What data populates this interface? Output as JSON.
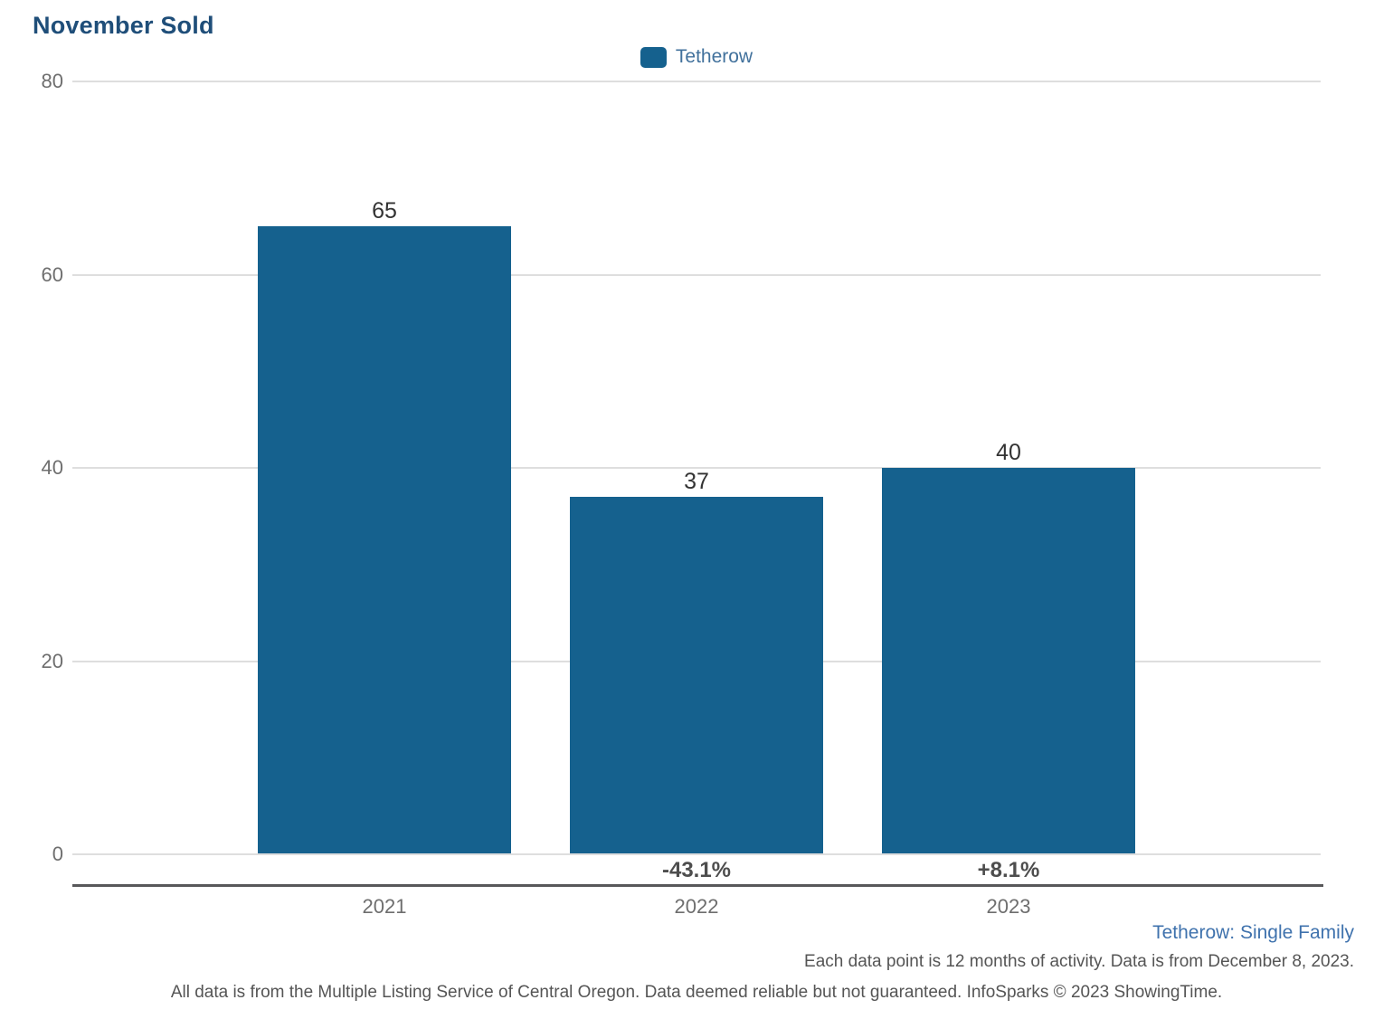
{
  "title": "November Sold",
  "legend": {
    "label": "Tetherow",
    "swatch_color": "#15618E"
  },
  "chart_data": {
    "type": "bar",
    "title": "November Sold",
    "series_name": "Tetherow",
    "categories": [
      "2021",
      "2022",
      "2023"
    ],
    "values": [
      65,
      37,
      40
    ],
    "value_labels": [
      "65",
      "37",
      "40"
    ],
    "pct_change_labels": [
      "",
      "-43.1%",
      "+8.1%"
    ],
    "xlabel": "",
    "ylabel": "",
    "ylim": [
      0,
      80
    ],
    "yticks": [
      0,
      20,
      40,
      60,
      80
    ],
    "grid": true,
    "legend_position": "top-center",
    "bar_color": "#15618E"
  },
  "footer": {
    "series_scope": "Tetherow: Single Family",
    "data_note": "Each data point is 12 months of activity. Data is from December 8, 2023.",
    "disclaimer": "All data is from the Multiple Listing Service of Central Oregon. Data deemed reliable but not guaranteed. InfoSparks © 2023 ShowingTime."
  },
  "colors": {
    "bar": "#15618E",
    "title": "#1F4E79",
    "axis_text": "#6E6E6E",
    "value_label": "#333333",
    "pct_label": "#4D4D4D",
    "gridline": "#DEDEDE",
    "axis_line": "#58585A",
    "legend_label": "#41719C",
    "footer_scope": "#3F72AD",
    "footer_text": "#555555"
  }
}
